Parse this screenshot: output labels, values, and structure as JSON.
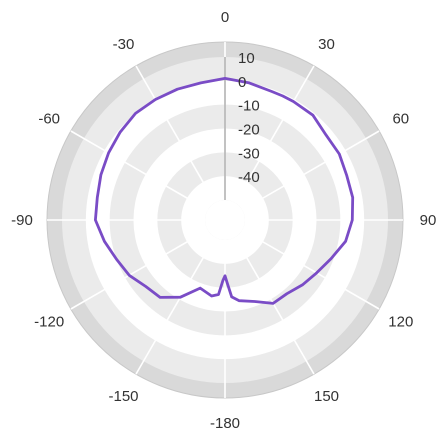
{
  "chart_data": {
    "type": "polar-line",
    "title": "",
    "angle_labels": [
      "0",
      "30",
      "60",
      "90",
      "120",
      "150",
      "-180",
      "-150",
      "-120",
      "-90",
      "-60",
      "-30"
    ],
    "angle_ticks": [
      0,
      30,
      60,
      90,
      120,
      150,
      180,
      -150,
      -120,
      -90,
      -60,
      -30
    ],
    "radial_labels": [
      "10",
      "0",
      "-10",
      "-20",
      "-30",
      "-40"
    ],
    "radial_ticks": [
      10,
      0,
      -10,
      -20,
      -30,
      -40
    ],
    "rlim": [
      -50,
      10
    ],
    "grid": true,
    "colors": {
      "series": "#7a4cc6",
      "band_dark": "#ebebeb",
      "band_light": "#ffffff",
      "outer_ring": "#d9d9d9",
      "axis": "#b3b3b3",
      "text": "#333333"
    },
    "series": [
      {
        "angles": [
          0,
          10,
          20,
          25,
          30,
          40,
          50,
          60,
          70,
          80,
          90,
          100,
          110,
          120,
          130,
          140,
          150,
          160,
          170,
          175,
          178,
          180,
          -178,
          -175,
          -170,
          -160,
          -150,
          -140,
          -130,
          -120,
          -110,
          -100,
          -90,
          -80,
          -70,
          -60,
          -50,
          -40,
          -30,
          -20,
          -10
        ],
        "values": [
          1,
          0,
          -1,
          -1,
          -1,
          -1,
          -3,
          -3,
          -4,
          -4,
          -5,
          -7,
          -11,
          -14,
          -16,
          -18,
          -18,
          -22,
          -24,
          -26,
          -32,
          -35,
          -33,
          -27,
          -26,
          -28,
          -21,
          -16,
          -15,
          -12,
          -10,
          -7,
          -4,
          -4,
          -3,
          -2,
          -1,
          0,
          0,
          0,
          0
        ]
      }
    ]
  }
}
